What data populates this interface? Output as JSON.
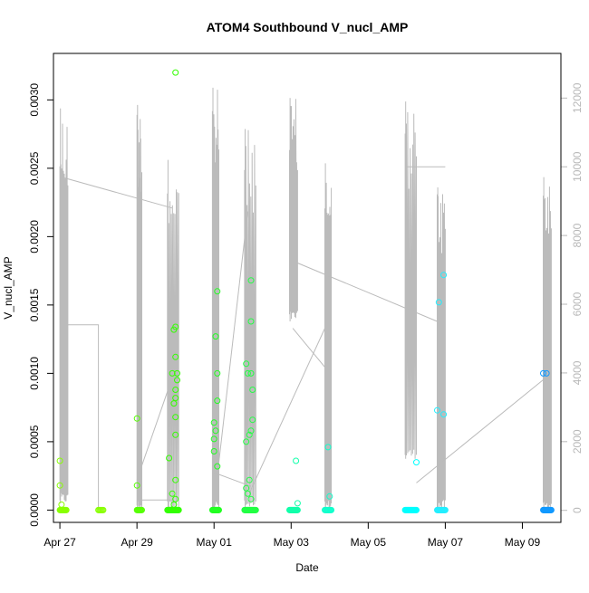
{
  "chart_data": {
    "type": "scatter",
    "title": "ATOM4 Southbound V_nucl_AMP",
    "xlabel": "Date",
    "ylabel": "V_nucl_AMP",
    "x_axis": {
      "type": "date",
      "range": [
        "2024-04-26T20:00",
        "2024-05-10T00:00"
      ],
      "ticks": [
        {
          "value": "2024-04-27",
          "label": "Apr 27"
        },
        {
          "value": "2024-04-29",
          "label": "Apr 29"
        },
        {
          "value": "2024-05-01",
          "label": "May 01"
        },
        {
          "value": "2024-05-03",
          "label": "May 03"
        },
        {
          "value": "2024-05-05",
          "label": "May 05"
        },
        {
          "value": "2024-05-07",
          "label": "May 07"
        },
        {
          "value": "2024-05-09",
          "label": "May 09"
        }
      ]
    },
    "y_left": {
      "range": [
        -9e-05,
        0.00334
      ],
      "ticks": [
        {
          "value": 0,
          "label": "0.0000"
        },
        {
          "value": 0.0005,
          "label": "0.0005"
        },
        {
          "value": 0.001,
          "label": "0.0010"
        },
        {
          "value": 0.0015,
          "label": "0.0015"
        },
        {
          "value": 0.002,
          "label": "0.0020"
        },
        {
          "value": 0.0025,
          "label": "0.0025"
        },
        {
          "value": 0.003,
          "label": "0.0030"
        }
      ]
    },
    "y_right": {
      "range": [
        -350,
        13300
      ],
      "color": "#b8b8b8",
      "ticks": [
        {
          "value": 0,
          "label": "0"
        },
        {
          "value": 2000,
          "label": "2000"
        },
        {
          "value": 4000,
          "label": "4000"
        },
        {
          "value": 6000,
          "label": "6000"
        },
        {
          "value": 8000,
          "label": "8000"
        },
        {
          "value": 10000,
          "label": "10000"
        },
        {
          "value": 12000,
          "label": "12000"
        }
      ]
    },
    "points_note": "",
    "clusters": [
      {
        "start": "2024-04-27T00:00",
        "end": "2024-04-27T04:00",
        "color": "#88ff00",
        "n": 12,
        "extra": [
          [
            "2024-04-27T00:00",
            0.00036
          ],
          [
            "2024-04-27T00:00",
            0.00018
          ],
          [
            "2024-04-27T01:00",
            4e-05
          ]
        ]
      },
      {
        "start": "2024-04-28T00:00",
        "end": "2024-04-28T03:00",
        "color": "#88ff00",
        "n": 6,
        "extra": []
      },
      {
        "start": "2024-04-29T00:00",
        "end": "2024-04-29T03:00",
        "color": "#55ff00",
        "n": 8,
        "extra": [
          [
            "2024-04-29T00:00",
            0.00067
          ],
          [
            "2024-04-29T00:00",
            0.00018
          ]
        ]
      },
      {
        "start": "2024-04-29T19:00",
        "end": "2024-04-30T02:00",
        "color": "#33ff00",
        "n": 30,
        "extra": [
          [
            "2024-04-30T00:00",
            0.0032
          ],
          [
            "2024-04-29T22:00",
            0.001
          ],
          [
            "2024-04-30T01:00",
            0.001
          ],
          [
            "2024-04-30T00:00",
            0.00134
          ],
          [
            "2024-04-29T23:00",
            0.00132
          ],
          [
            "2024-04-30T00:00",
            0.00112
          ],
          [
            "2024-04-30T01:00",
            0.00095
          ],
          [
            "2024-04-30T00:00",
            0.00088
          ],
          [
            "2024-04-30T00:00",
            0.00082
          ],
          [
            "2024-04-29T23:00",
            0.00078
          ],
          [
            "2024-04-30T00:00",
            0.00068
          ],
          [
            "2024-04-30T00:00",
            0.00055
          ],
          [
            "2024-04-29T20:00",
            0.00038
          ],
          [
            "2024-04-30T00:00",
            0.00022
          ],
          [
            "2024-04-29T22:00",
            0.00012
          ],
          [
            "2024-04-30T00:00",
            8e-05
          ],
          [
            "2024-04-29T23:00",
            4e-05
          ]
        ]
      },
      {
        "start": "2024-04-30T23:00",
        "end": "2024-05-01T03:00",
        "color": "#22ff22",
        "n": 15,
        "extra": [
          [
            "2024-05-01T02:00",
            0.0016
          ],
          [
            "2024-05-01T01:00",
            0.00127
          ],
          [
            "2024-05-01T02:00",
            0.001
          ],
          [
            "2024-05-01T02:00",
            0.0008
          ],
          [
            "2024-05-01T00:00",
            0.00064
          ],
          [
            "2024-05-01T01:00",
            0.00058
          ],
          [
            "2024-05-01T00:00",
            0.00052
          ],
          [
            "2024-05-01T00:00",
            0.00043
          ],
          [
            "2024-05-01T02:00",
            0.00032
          ]
        ]
      },
      {
        "start": "2024-05-01T19:00",
        "end": "2024-05-02T02:00",
        "color": "#22ff44",
        "n": 25,
        "extra": [
          [
            "2024-05-01T23:00",
            0.00168
          ],
          [
            "2024-05-01T23:00",
            0.00138
          ],
          [
            "2024-05-01T20:00",
            0.00107
          ],
          [
            "2024-05-01T21:00",
            0.001
          ],
          [
            "2024-05-01T23:00",
            0.001
          ],
          [
            "2024-05-02T00:00",
            0.00088
          ],
          [
            "2024-05-02T00:00",
            0.00066
          ],
          [
            "2024-05-01T23:00",
            0.00058
          ],
          [
            "2024-05-01T22:00",
            0.00055
          ],
          [
            "2024-05-01T20:00",
            0.0005
          ],
          [
            "2024-05-01T22:00",
            0.00022
          ],
          [
            "2024-05-01T20:00",
            0.00016
          ],
          [
            "2024-05-01T21:00",
            0.00012
          ],
          [
            "2024-05-01T23:00",
            8e-05
          ]
        ]
      },
      {
        "start": "2024-05-02T23:00",
        "end": "2024-05-03T04:00",
        "color": "#11ffaa",
        "n": 18,
        "extra": [
          [
            "2024-05-03T03:00",
            0.00036
          ],
          [
            "2024-05-03T04:00",
            5e-05
          ]
        ]
      },
      {
        "start": "2024-05-03T21:00",
        "end": "2024-05-04T01:00",
        "color": "#11ffcc",
        "n": 10,
        "extra": [
          [
            "2024-05-03T23:00",
            0.00046
          ],
          [
            "2024-05-04T00:00",
            0.0001
          ]
        ]
      },
      {
        "start": "2024-05-05T23:00",
        "end": "2024-05-06T06:00",
        "color": "#00ffff",
        "n": 20,
        "extra": [
          [
            "2024-05-06T06:00",
            0.00035
          ]
        ]
      },
      {
        "start": "2024-05-06T19:00",
        "end": "2024-05-07T00:00",
        "color": "#22eeff",
        "n": 14,
        "extra": [
          [
            "2024-05-06T23:00",
            0.00172
          ],
          [
            "2024-05-06T20:00",
            0.00152
          ],
          [
            "2024-05-06T19:00",
            0.00073
          ],
          [
            "2024-05-06T23:00",
            0.0007
          ]
        ]
      },
      {
        "start": "2024-05-09T13:00",
        "end": "2024-05-09T18:00",
        "color": "#1199ff",
        "n": 20,
        "extra": [
          [
            "2024-05-09T13:00",
            0.001
          ],
          [
            "2024-05-09T15:00",
            0.001
          ]
        ]
      }
    ],
    "gray_series": {
      "color": "#bbbbbb",
      "bursts": [
        {
          "start": "2024-04-27T00:00",
          "end": "2024-04-27T05:00",
          "peak": 11700,
          "floor": 200
        },
        {
          "start": "2024-04-29T00:00",
          "end": "2024-04-29T03:00",
          "peak": 11800,
          "floor": 0
        },
        {
          "start": "2024-04-29T19:00",
          "end": "2024-04-30T02:00",
          "peak": 10200,
          "floor": 0
        },
        {
          "start": "2024-04-30T23:00",
          "end": "2024-05-01T03:00",
          "peak": 12300,
          "floor": 0
        },
        {
          "start": "2024-05-01T19:00",
          "end": "2024-05-02T02:00",
          "peak": 11100,
          "floor": 0
        },
        {
          "start": "2024-05-02T23:00",
          "end": "2024-05-03T04:00",
          "peak": 12000,
          "floor": 5500
        },
        {
          "start": "2024-05-03T21:00",
          "end": "2024-05-04T01:00",
          "peak": 10100,
          "floor": 0
        },
        {
          "start": "2024-05-05T23:00",
          "end": "2024-05-06T06:00",
          "peak": 11900,
          "floor": 1500
        },
        {
          "start": "2024-05-06T19:00",
          "end": "2024-05-07T00:00",
          "peak": 9400,
          "floor": 0
        },
        {
          "start": "2024-05-09T13:00",
          "end": "2024-05-09T18:00",
          "peak": 9700,
          "floor": 0
        }
      ],
      "connectors": [
        [
          [
            "2024-04-27T01:00",
            5400
          ],
          [
            "2024-04-28T00:00",
            5400
          ],
          [
            "2024-04-28T00:00",
            0
          ]
        ],
        [
          [
            "2024-04-27T01:00",
            9700
          ],
          [
            "2024-04-29T22:00",
            8800
          ]
        ],
        [
          [
            "2024-04-29T00:00",
            300
          ],
          [
            "2024-04-29T22:00",
            300
          ]
        ],
        [
          [
            "2024-04-29T00:00",
            900
          ],
          [
            "2024-04-29T23:00",
            4000
          ]
        ],
        [
          [
            "2024-05-01T00:00",
            1100
          ],
          [
            "2024-05-01T23:00",
            700
          ]
        ],
        [
          [
            "2024-05-01T03:00",
            1400
          ],
          [
            "2024-05-01T21:00",
            8700
          ]
        ],
        [
          [
            "2024-05-01T22:00",
            500
          ],
          [
            "2024-05-03T23:00",
            5500
          ]
        ],
        [
          [
            "2024-05-03T01:00",
            5300
          ],
          [
            "2024-05-04T00:00",
            4000
          ]
        ],
        [
          [
            "2024-05-03T04:00",
            7200
          ],
          [
            "2024-05-06T19:00",
            5500
          ]
        ],
        [
          [
            "2024-05-06T00:00",
            10000
          ],
          [
            "2024-05-07T00:00",
            10000
          ]
        ],
        [
          [
            "2024-05-06T06:00",
            800
          ],
          [
            "2024-05-09T13:00",
            3800
          ]
        ]
      ]
    }
  }
}
